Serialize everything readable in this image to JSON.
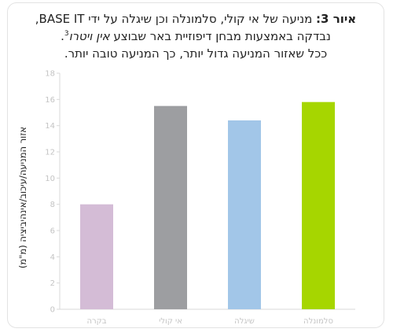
{
  "caption": {
    "lead": "איור 3:",
    "line1_rest": " מניעה של אי קולי, סלמונלה וכן שיגלה על ידי BASE IT,",
    "line2_text": "נבדקה באמצעות מבחן דיפוזיית באר שבוצע ",
    "line2_italic": "אין ויטרו",
    "line2_sup": "3",
    "line2_end": ".",
    "line3": "ככל שאזור המניעה גדול יותר, כך המניעה טובה יותר."
  },
  "chart_data": {
    "type": "bar",
    "categories": [
      "בקרה",
      "אי קולי",
      "שיגלה",
      "סלמונלה"
    ],
    "values": [
      8.0,
      15.5,
      14.4,
      15.8
    ],
    "colors": [
      "#d4bcd6",
      "#9d9ea1",
      "#a2c6e8",
      "#a6d600"
    ],
    "ylabel": "אזור המניעה/עיכוב/אינהיביציה (מ\"מ)",
    "xlabel": "",
    "ylim": [
      0,
      18
    ],
    "yticks": [
      0,
      2,
      4,
      6,
      8,
      10,
      12,
      14,
      16,
      18
    ],
    "grid": false,
    "legend": "none"
  }
}
